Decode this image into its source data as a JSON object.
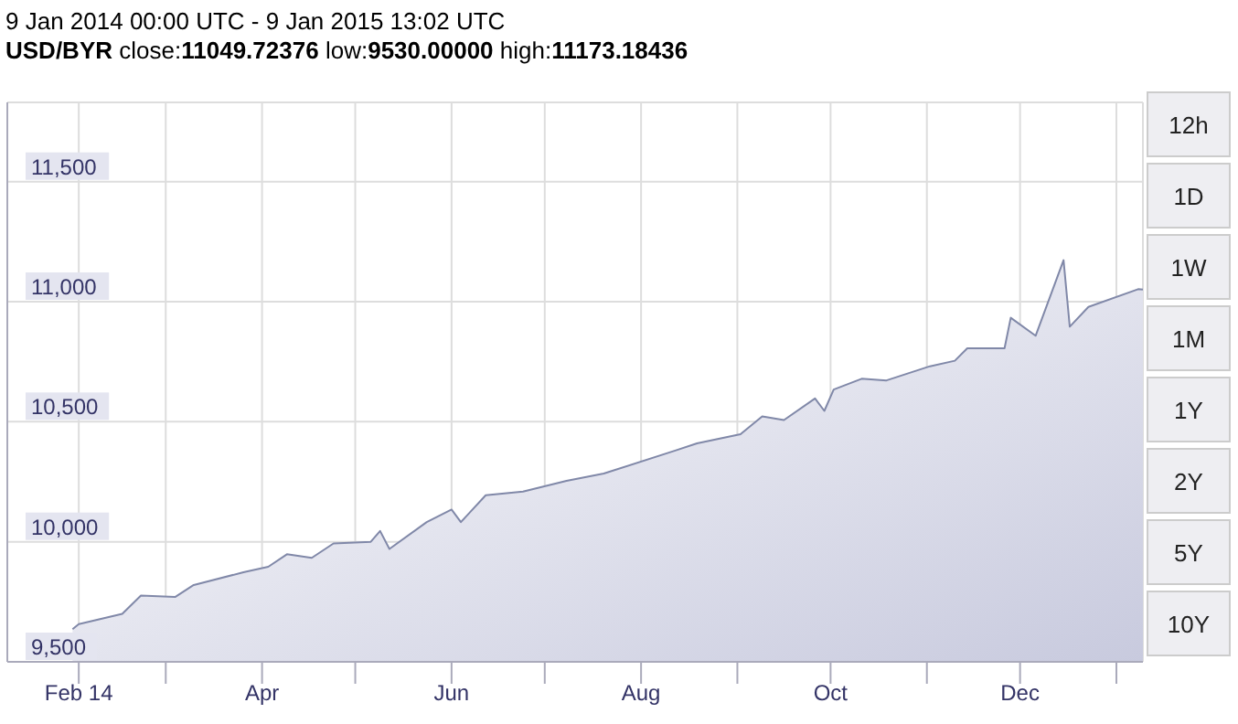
{
  "chart_data": {
    "type": "area",
    "title": "9 Jan 2014 00:00 UTC - 9 Jan 2015 13:02 UTC",
    "subtitle": "USD/BYR close:11049.72376 low:9530.00000 high:11173.18436",
    "x": [
      "2014-01-30",
      "2014-02-01",
      "2014-02-15",
      "2014-02-21",
      "2014-03-04",
      "2014-03-10",
      "2014-03-26",
      "2014-04-03",
      "2014-04-09",
      "2014-04-17",
      "2014-04-24",
      "2014-05-06",
      "2014-05-09",
      "2014-05-12",
      "2014-05-24",
      "2014-06-01",
      "2014-06-04",
      "2014-06-12",
      "2014-06-24",
      "2014-07-08",
      "2014-07-20",
      "2014-08-12",
      "2014-08-19",
      "2014-09-02",
      "2014-09-09",
      "2014-09-16",
      "2014-09-26",
      "2014-09-29",
      "2014-10-02",
      "2014-10-11",
      "2014-10-19",
      "2014-11-02",
      "2014-11-10",
      "2014-11-14",
      "2014-11-26",
      "2014-11-28",
      "2014-12-06",
      "2014-12-15",
      "2014-12-17",
      "2014-12-23",
      "2015-01-08",
      "2015-01-09T13:02"
    ],
    "series": [
      {
        "color": "#8088a8",
        "values": [
          9636,
          9657,
          9700,
          9776,
          9770,
          9820,
          9873,
          9896,
          9948,
          9933,
          9993,
          10000,
          10045,
          9970,
          10082,
          10134,
          10082,
          10194,
          10209,
          10254,
          10284,
          10380,
          10410,
          10448,
          10522,
          10507,
          10597,
          10545,
          10634,
          10679,
          10672,
          10731,
          10754,
          10806,
          10806,
          10933,
          10858,
          11173,
          10896,
          10978,
          11052,
          11050
        ]
      }
    ],
    "xlim": [
      "2014-01-09",
      "2015-01-09T13:02"
    ],
    "xticks": [
      {
        "value": "2014-02-01",
        "label": "Feb 14"
      },
      {
        "value": "2014-03-01",
        "label": null
      },
      {
        "value": "2014-04-01",
        "label": "Apr"
      },
      {
        "value": "2014-05-01",
        "label": null
      },
      {
        "value": "2014-06-01",
        "label": "Jun"
      },
      {
        "value": "2014-07-01",
        "label": null
      },
      {
        "value": "2014-08-01",
        "label": "Aug"
      },
      {
        "value": "2014-09-01",
        "label": null
      },
      {
        "value": "2014-10-01",
        "label": "Oct"
      },
      {
        "value": "2014-11-01",
        "label": null
      },
      {
        "value": "2014-12-01",
        "label": "Dec"
      },
      {
        "value": "2015-01-01",
        "label": null
      }
    ],
    "ylim": [
      9500,
      11830
    ],
    "yticks": [
      {
        "value": 9500,
        "label": "9,500"
      },
      {
        "value": 10000,
        "label": "10,000"
      },
      {
        "value": 10500,
        "label": "10,500"
      },
      {
        "value": 11000,
        "label": "11,000"
      },
      {
        "value": 11500,
        "label": "11,500"
      }
    ],
    "grid": true,
    "legend": false,
    "annotations": [
      "12h",
      "1D",
      "1W",
      "1M",
      "1Y",
      "2Y",
      "5Y",
      "10Y"
    ]
  }
}
